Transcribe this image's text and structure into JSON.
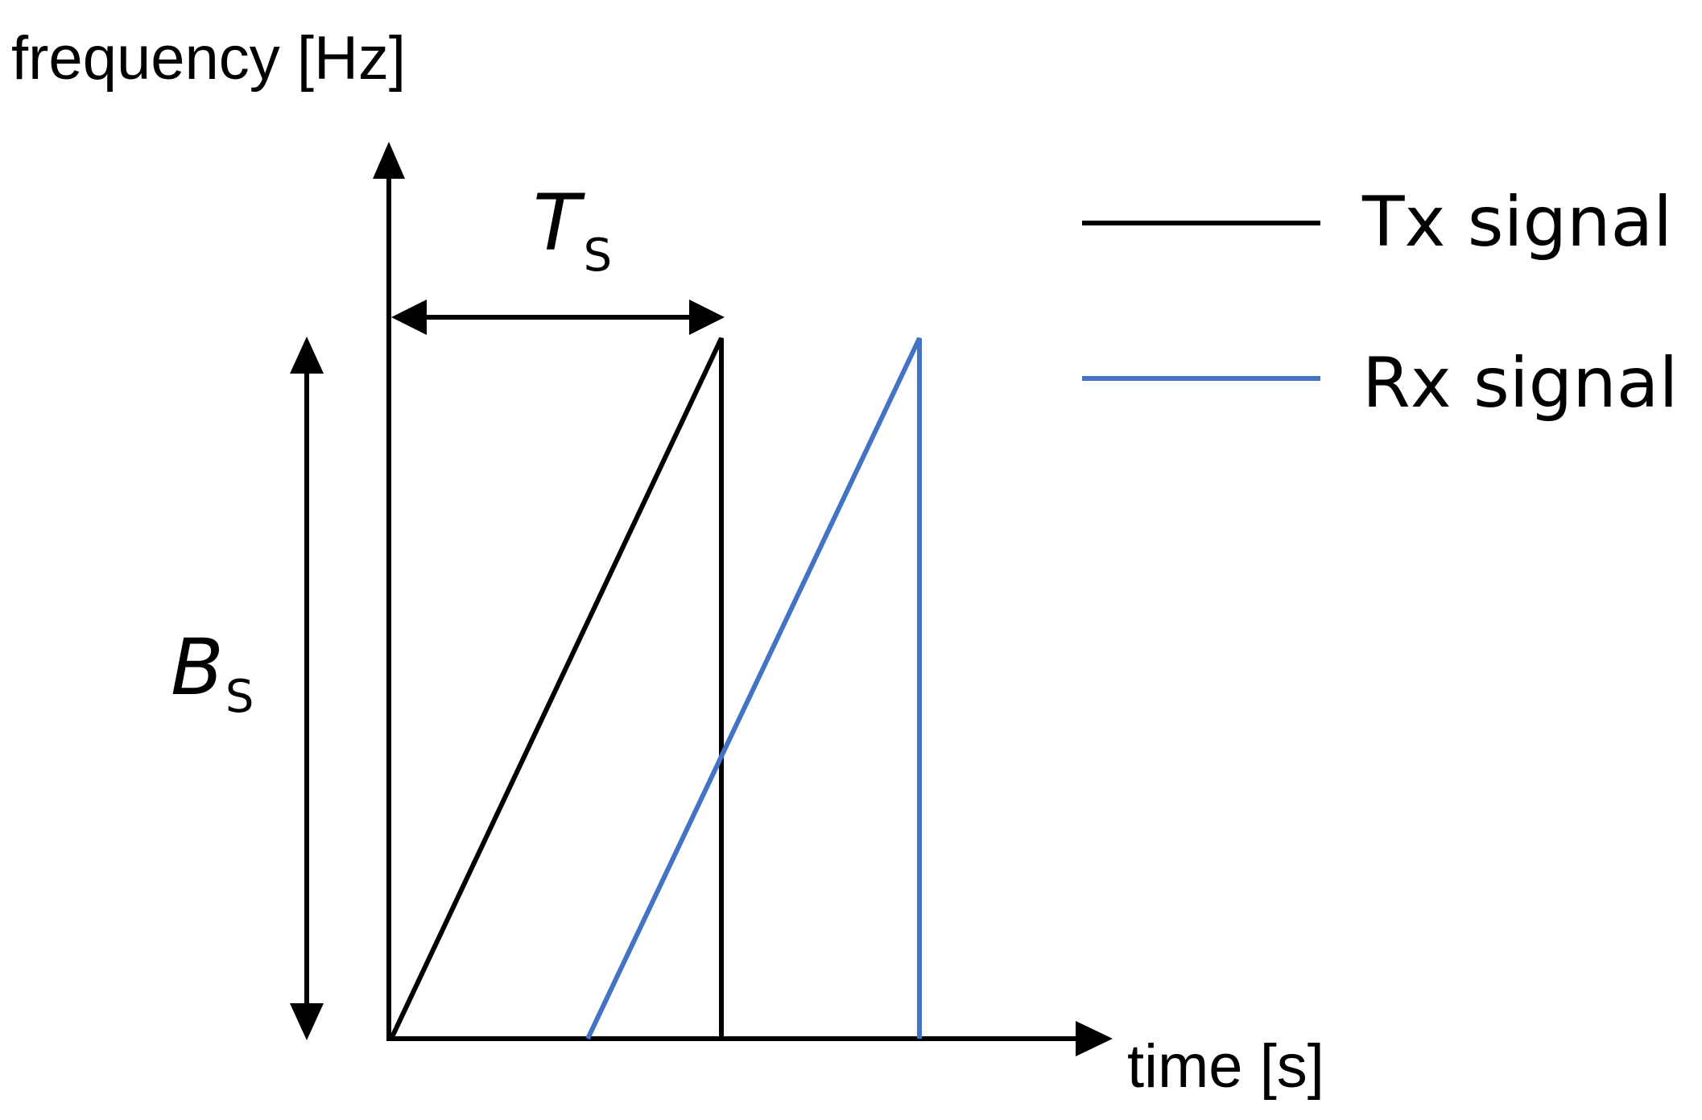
{
  "diagram": {
    "y_axis_label": "frequency [Hz]",
    "x_axis_label": "time [s]",
    "period": {
      "symbol": "T",
      "subscript": "S"
    },
    "bandwidth": {
      "symbol": "B",
      "subscript": "S"
    },
    "legend": [
      {
        "label": "Tx signal",
        "color": "#000000"
      },
      {
        "label": "Rx signal",
        "color": "#4472C4"
      }
    ]
  }
}
